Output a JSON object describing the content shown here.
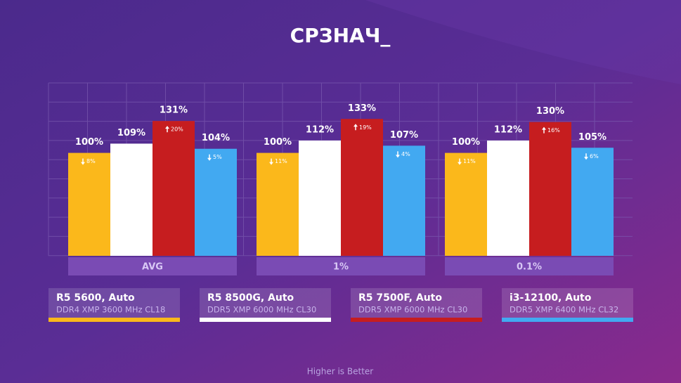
{
  "chart_data": {
    "type": "bar",
    "title": "СРЗНАЧ_",
    "categories": [
      "AVG",
      "1%",
      "0.1%"
    ],
    "ylim": [
      0,
      168
    ],
    "series": [
      {
        "name": "R5 5600, Auto",
        "subtitle": "DDR4 XMP 3600 MHz CL18",
        "color": "#fbb81b",
        "values": [
          100,
          100,
          100
        ],
        "value_labels": [
          "100%",
          "100%",
          "100%"
        ],
        "changes": [
          8,
          11,
          11
        ],
        "change_labels": [
          "8%",
          "11%",
          "11%"
        ],
        "change_direction": "down"
      },
      {
        "name": "R5 8500G, Auto",
        "subtitle": "DDR5 XMP 6000 MHz CL30",
        "color": "#ffffff",
        "values": [
          109,
          112,
          112
        ],
        "value_labels": [
          "109%",
          "112%",
          "112%"
        ]
      },
      {
        "name": "R5 7500F, Auto",
        "subtitle": "DDR5 XMP 6000 MHz CL30",
        "color": "#c61d1f",
        "values": [
          131,
          133,
          130
        ],
        "value_labels": [
          "131%",
          "133%",
          "130%"
        ],
        "changes": [
          20,
          19,
          16
        ],
        "change_labels": [
          "20%",
          "19%",
          "16%"
        ],
        "change_direction": "up"
      },
      {
        "name": "i3-12100, Auto",
        "subtitle": "DDR5 XMP 6400 MHz CL32",
        "color": "#42a9f1",
        "values": [
          104,
          107,
          105
        ],
        "value_labels": [
          "104%",
          "107%",
          "105%"
        ],
        "changes": [
          5,
          4,
          6
        ],
        "change_labels": [
          "5%",
          "4%",
          "6%"
        ],
        "change_direction": "down"
      }
    ],
    "footnote": "Higher is Better"
  }
}
